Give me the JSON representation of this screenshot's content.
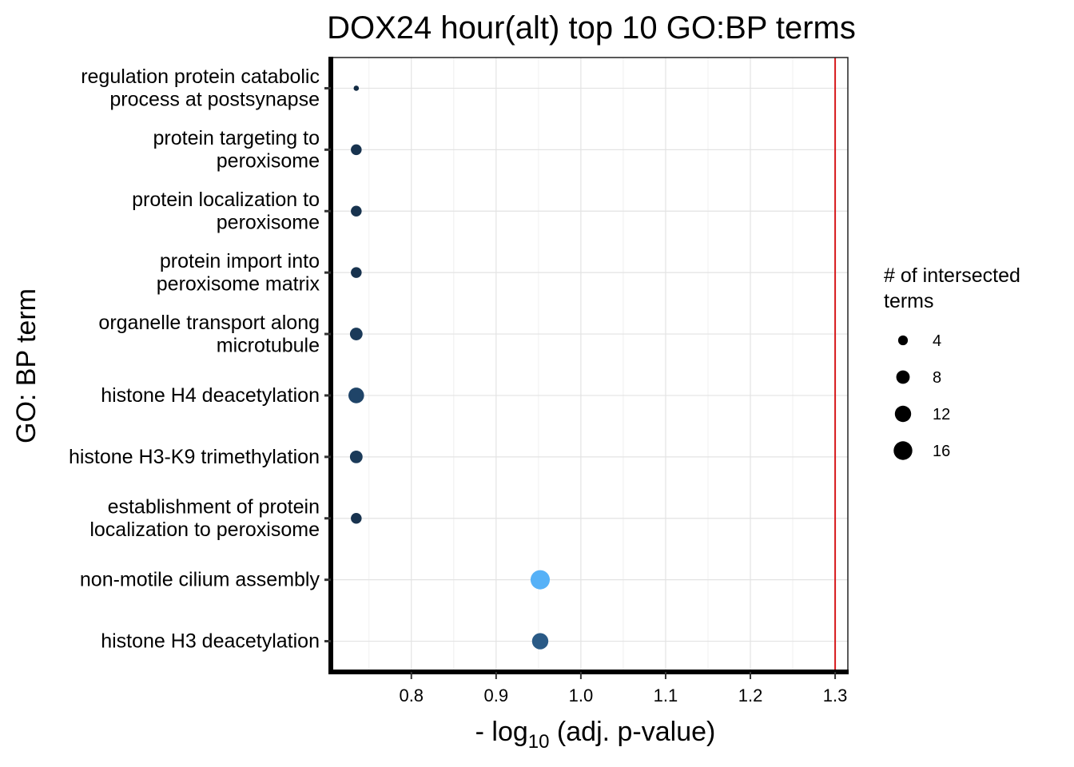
{
  "chart_data": {
    "type": "scatter",
    "title": "DOX24 hour(alt) top 10 GO:BP terms",
    "xlabel_prefix": "- log",
    "xlabel_sub": "10",
    "xlabel_suffix": " (adj. p-value)",
    "ylabel": "GO: BP term",
    "xlim": [
      0.705,
      1.315
    ],
    "xticks": [
      "0.8",
      "0.9",
      "1.0",
      "1.1",
      "1.2",
      "1.3"
    ],
    "threshold": 1.3,
    "threshold_color": "#d7191c",
    "grid": true,
    "categories": [
      [
        "regulation protein catabolic",
        "process at postsynapse"
      ],
      [
        "protein targeting to",
        "peroxisome"
      ],
      [
        "protein localization to",
        "peroxisome"
      ],
      [
        "protein import into",
        "peroxisome matrix"
      ],
      [
        "organelle transport along",
        "microtubule"
      ],
      [
        "histone H4 deacetylation"
      ],
      [
        "histone H3-K9 trimethylation"
      ],
      [
        "establishment of protein",
        "localization to peroxisome"
      ],
      [
        "non-motile cilium assembly"
      ],
      [
        "histone H3 deacetylation"
      ]
    ],
    "points": [
      {
        "x": 0.735,
        "size": 1,
        "color": "#132b43"
      },
      {
        "x": 0.735,
        "size": 5,
        "color": "#18334f"
      },
      {
        "x": 0.735,
        "size": 5,
        "color": "#18334f"
      },
      {
        "x": 0.735,
        "size": 5,
        "color": "#18334f"
      },
      {
        "x": 0.735,
        "size": 7,
        "color": "#1b3a59"
      },
      {
        "x": 0.735,
        "size": 11,
        "color": "#1f4468"
      },
      {
        "x": 0.735,
        "size": 7,
        "color": "#1b3a59"
      },
      {
        "x": 0.735,
        "size": 5,
        "color": "#18334f"
      },
      {
        "x": 0.952,
        "size": 17,
        "color": "#56b1f7"
      },
      {
        "x": 0.952,
        "size": 12,
        "color": "#2a5a86"
      }
    ],
    "legend": {
      "title_lines": [
        "# of intersected",
        " terms"
      ],
      "placement": "right",
      "sizes": [
        4,
        8,
        12,
        16
      ],
      "labels": [
        "4",
        "8",
        "12",
        "16"
      ]
    }
  }
}
